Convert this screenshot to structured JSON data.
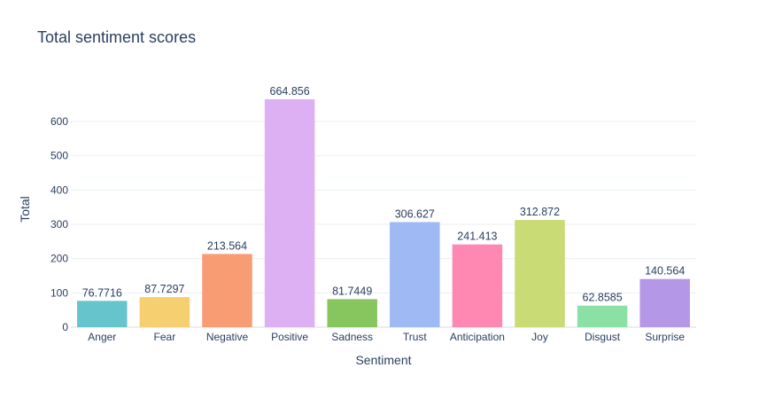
{
  "chart_data": {
    "type": "bar",
    "title": "Total sentiment scores",
    "xlabel": "Sentiment",
    "ylabel": "Total",
    "ylim": [
      0,
      700
    ],
    "yticks": [
      0,
      100,
      200,
      300,
      400,
      500,
      600
    ],
    "grid": true,
    "categories": [
      "Anger",
      "Fear",
      "Negative",
      "Positive",
      "Sadness",
      "Trust",
      "Anticipation",
      "Joy",
      "Disgust",
      "Surprise"
    ],
    "values": [
      76.7716,
      87.7297,
      213.564,
      664.856,
      81.7449,
      306.627,
      241.413,
      312.872,
      62.8585,
      140.564
    ],
    "data_labels": [
      "76.7716",
      "87.7297",
      "213.564",
      "664.856",
      "81.7449",
      "306.627",
      "241.413",
      "312.872",
      "62.8585",
      "140.564"
    ],
    "colors": [
      "#66c5cc",
      "#f6cf71",
      "#f89c74",
      "#dcb0f2",
      "#87c55f",
      "#9eb9f3",
      "#fe88b1",
      "#c9db74",
      "#8be0a4",
      "#b497e7"
    ]
  }
}
